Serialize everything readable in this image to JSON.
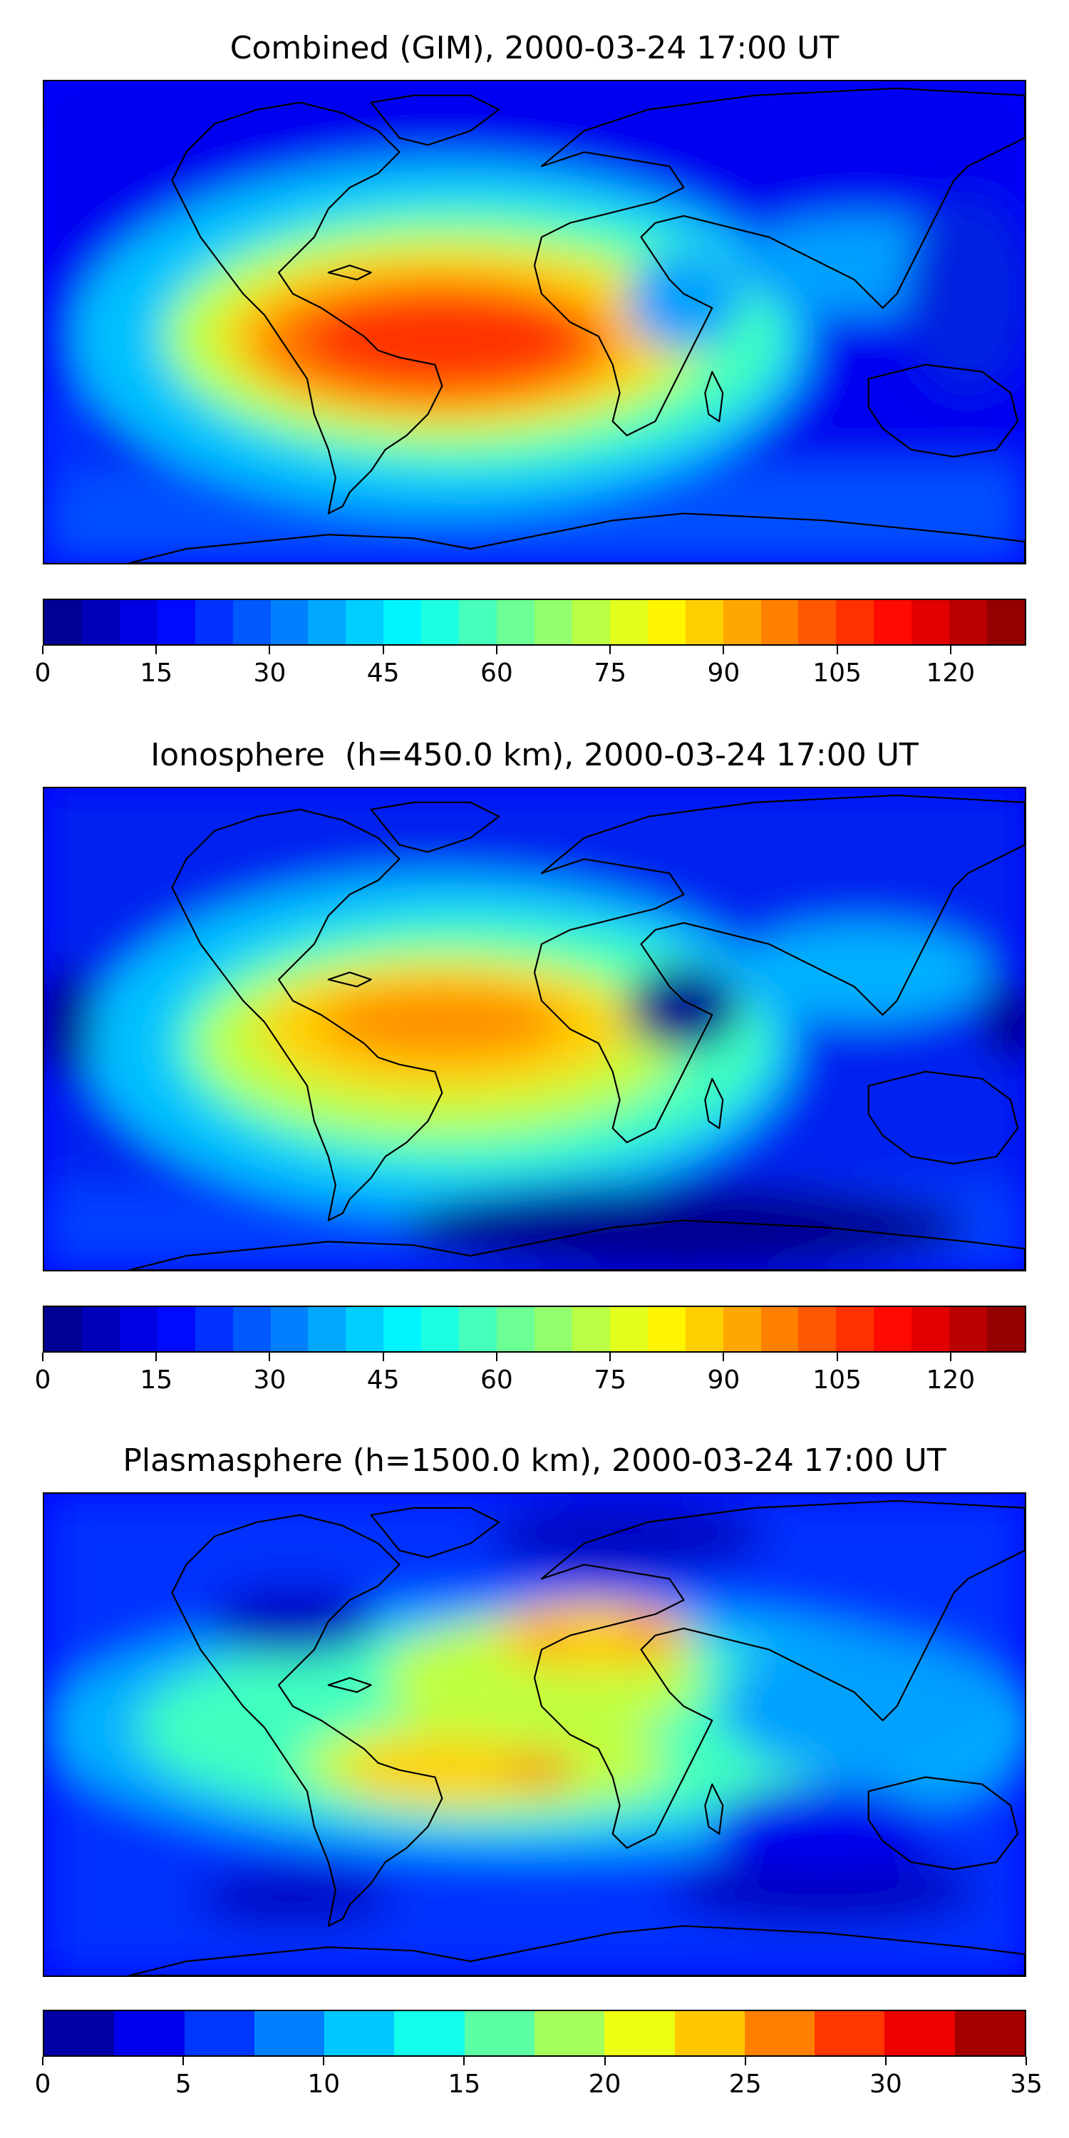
{
  "panels": [
    {
      "title": "Combined (GIM), 2000-03-24 17:00 UT",
      "colorbar": {
        "min": 0,
        "max": 130,
        "levels": 26,
        "tick_labels": [
          "0",
          "15",
          "30",
          "45",
          "60",
          "75",
          "90",
          "105",
          "120"
        ]
      }
    },
    {
      "title": "Ionosphere  (h=450.0 km), 2000-03-24 17:00 UT",
      "colorbar": {
        "min": 0,
        "max": 130,
        "levels": 26,
        "tick_labels": [
          "0",
          "15",
          "30",
          "45",
          "60",
          "75",
          "90",
          "105",
          "120"
        ]
      }
    },
    {
      "title": "Plasmasphere (h=1500.0 km), 2000-03-24 17:00 UT",
      "colorbar": {
        "min": 0,
        "max": 35,
        "levels": 14,
        "tick_labels": [
          "0",
          "5",
          "10",
          "15",
          "20",
          "25",
          "30",
          "35"
        ]
      }
    }
  ],
  "colormap": "jet",
  "coastline_color": "#000000"
}
